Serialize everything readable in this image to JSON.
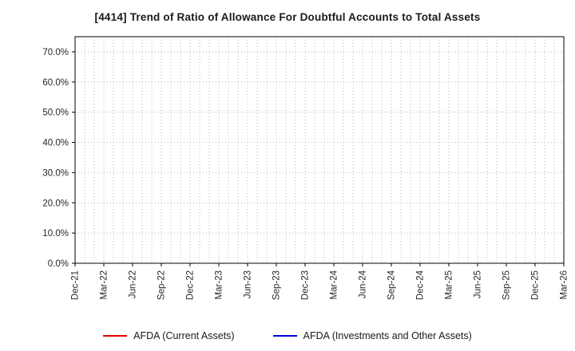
{
  "title": "[4414]  Trend of Ratio of Allowance For Doubtful Accounts to Total Assets",
  "chart_data": {
    "type": "line",
    "x": [
      "Dec-21",
      "Mar-22",
      "Jun-22",
      "Sep-22",
      "Dec-22",
      "Mar-23",
      "Jun-23",
      "Sep-23",
      "Dec-23",
      "Mar-24",
      "Jun-24",
      "Sep-24",
      "Dec-24",
      "Mar-25",
      "Jun-25",
      "Sep-25",
      "Dec-25",
      "Mar-26"
    ],
    "yticks": [
      {
        "label": "0.0%",
        "value": 0
      },
      {
        "label": "10.0%",
        "value": 10
      },
      {
        "label": "20.0%",
        "value": 20
      },
      {
        "label": "30.0%",
        "value": 30
      },
      {
        "label": "40.0%",
        "value": 40
      },
      {
        "label": "50.0%",
        "value": 50
      },
      {
        "label": "60.0%",
        "value": 60
      },
      {
        "label": "70.0%",
        "value": 70
      }
    ],
    "ylim": [
      0,
      75
    ],
    "grid": true,
    "grid_style": "dotted",
    "grid_color": "#b5b5b5",
    "axis_color": "#000000",
    "legend_position": "bottom",
    "series": [
      {
        "name": "AFDA (Current Assets)",
        "color": "#e60000",
        "values": []
      },
      {
        "name": "AFDA (Investments and Other Assets)",
        "color": "#0000dd",
        "values": []
      }
    ],
    "note": "No data points are visible in the plot area; only gridlines are drawn."
  }
}
